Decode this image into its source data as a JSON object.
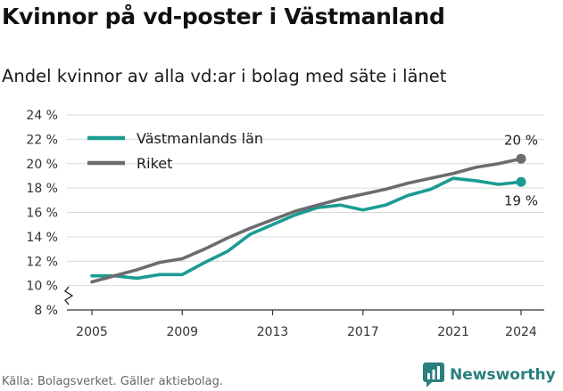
{
  "title": "Kvinnor på vd-poster i Västmanland",
  "subtitle": "Andel kvinnor av alla vd:ar i bolag med säte i länet",
  "source": "Källa: Bolagsverket. Gäller aktiebolag.",
  "brand": {
    "name": "Newsworthy",
    "icon": "newsworthy-logo-icon",
    "color": "#2a7f7f"
  },
  "colors": {
    "vastmanland": "#1a9c93",
    "riket": "#6b6b70",
    "grid": "#d9d9d9",
    "axis": "#333333"
  },
  "chart_data": {
    "type": "line",
    "title": "Kvinnor på vd-poster i Västmanland",
    "subtitle": "Andel kvinnor av alla vd:ar i bolag med säte i länet",
    "x": [
      2005,
      2006,
      2007,
      2008,
      2009,
      2010,
      2011,
      2012,
      2013,
      2014,
      2015,
      2016,
      2017,
      2018,
      2019,
      2020,
      2021,
      2022,
      2023,
      2024
    ],
    "x_ticks": [
      "2005",
      "2009",
      "2013",
      "2017",
      "2021",
      "2024"
    ],
    "y_ticks": [
      "8 %",
      "10 %",
      "12 %",
      "14 %",
      "16 %",
      "18 %",
      "20 %",
      "22 %",
      "24 %"
    ],
    "ylim": [
      8,
      24
    ],
    "axis_break": true,
    "grid": true,
    "legend_position": "top-left",
    "series": [
      {
        "name": "Västmanlands län",
        "color": "#1a9c93",
        "values": [
          10.8,
          10.8,
          10.6,
          10.9,
          10.9,
          11.9,
          12.8,
          14.2,
          15.0,
          15.8,
          16.4,
          16.6,
          16.2,
          16.6,
          17.4,
          17.9,
          18.8,
          18.6,
          18.3,
          18.5
        ],
        "end_label": "19 %"
      },
      {
        "name": "Riket",
        "color": "#6b6b70",
        "values": [
          10.3,
          10.8,
          11.3,
          11.9,
          12.2,
          13.0,
          13.9,
          14.7,
          15.4,
          16.1,
          16.6,
          17.1,
          17.5,
          17.9,
          18.4,
          18.8,
          19.2,
          19.7,
          20.0,
          20.4
        ],
        "end_label": "20 %"
      }
    ]
  }
}
